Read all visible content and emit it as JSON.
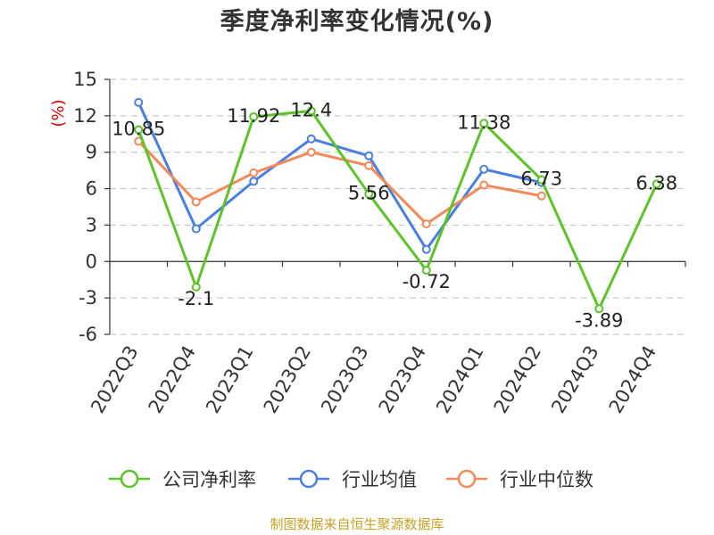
{
  "chart_data": {
    "type": "line",
    "title": "季度净利率变化情况(%)",
    "ylabel": "(%)",
    "xlabel": "",
    "categories": [
      "2022Q3",
      "2022Q4",
      "2023Q1",
      "2023Q2",
      "2023Q3",
      "2023Q4",
      "2024Q1",
      "2024Q2",
      "2024Q3",
      "2024Q4"
    ],
    "ylim": [
      -6,
      15
    ],
    "yticks": [
      15,
      12,
      9,
      6,
      3,
      0,
      -3,
      -6
    ],
    "grid": true,
    "legend_position": "bottom",
    "series": [
      {
        "name": "公司净利率",
        "color": "#5cc328",
        "values": [
          10.85,
          -2.1,
          11.92,
          12.4,
          5.56,
          -0.72,
          11.38,
          6.73,
          -3.89,
          6.38
        ],
        "labels": [
          "10.85",
          "-2.1",
          "11.92",
          "12.4",
          "5.56",
          "-0.72",
          "11.38",
          "6.73",
          "-3.89",
          "6.38"
        ]
      },
      {
        "name": "行业均值",
        "color": "#4a7fdf",
        "values": [
          13.1,
          2.7,
          6.6,
          10.1,
          8.7,
          1.0,
          7.6,
          6.5,
          null,
          null
        ]
      },
      {
        "name": "行业中位数",
        "color": "#f28a5a",
        "values": [
          9.9,
          4.9,
          7.3,
          9.0,
          7.9,
          3.1,
          6.3,
          5.4,
          null,
          null
        ]
      }
    ]
  },
  "source": "制图数据来自恒生聚源数据库"
}
